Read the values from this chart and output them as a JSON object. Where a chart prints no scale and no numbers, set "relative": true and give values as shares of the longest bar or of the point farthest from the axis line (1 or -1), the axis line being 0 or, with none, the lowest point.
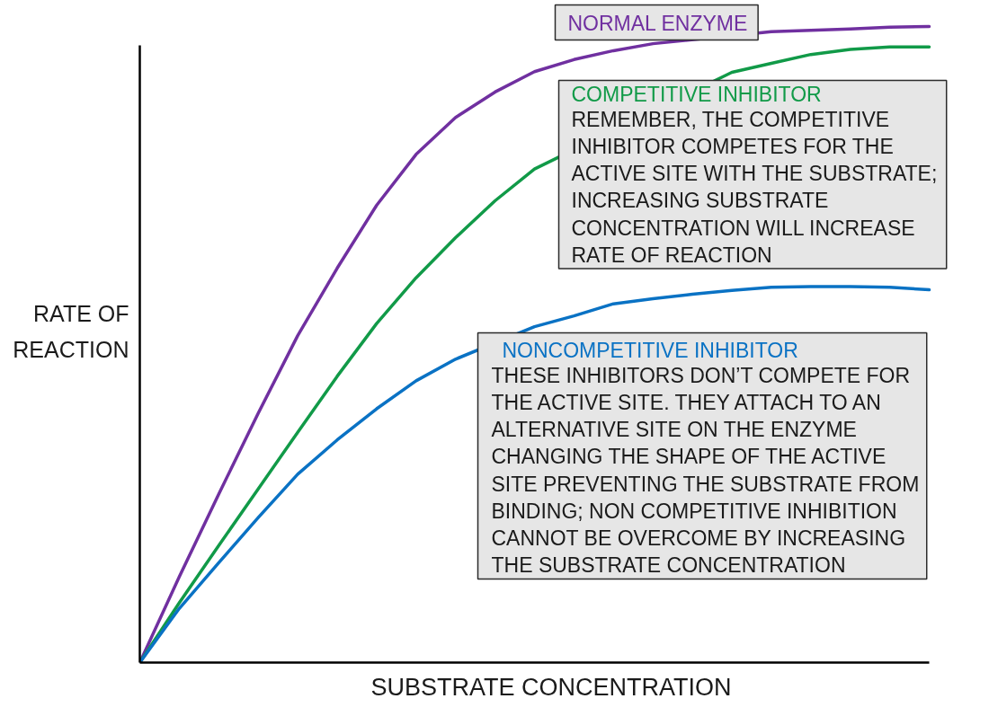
{
  "chart_data": {
    "type": "line",
    "relative": true,
    "xlabel": "SUBSTRATE CONCENTRATION",
    "ylabel": "RATE OF\nREACTION",
    "line_style": "solid",
    "categories": [
      null,
      null,
      null,
      null,
      null,
      null,
      null,
      null,
      null,
      null,
      null,
      null,
      null,
      null,
      null,
      null,
      null,
      null,
      null,
      null,
      null
    ],
    "series": [
      {
        "name": "NORMAL ENZYME",
        "color": "#7030a0",
        "values": [
          0,
          0.135,
          0.265,
          0.392,
          0.514,
          0.62,
          0.719,
          0.799,
          0.857,
          0.897,
          0.929,
          0.948,
          0.962,
          0.973,
          null,
          null,
          0.992,
          0.994,
          0.996,
          0.999,
          1.0
        ]
      },
      {
        "name": "COMPETITIVE INHIBITOR",
        "color": "#119a48",
        "values": [
          0,
          0.094,
          0.184,
          0.273,
          0.362,
          0.45,
          0.533,
          0.605,
          0.668,
          0.726,
          0.776,
          null,
          null,
          null,
          null,
          0.928,
          0.942,
          0.956,
          0.964,
          0.968,
          0.968
        ]
      },
      {
        "name": "NONCOMPETITIVE INHIBITOR",
        "color": "#0a72c4",
        "values": [
          0,
          0.085,
          0.157,
          0.228,
          0.296,
          0.35,
          0.399,
          0.443,
          0.477,
          null,
          0.528,
          0.545,
          0.564,
          0.572,
          0.579,
          0.585,
          0.59,
          0.591,
          0.591,
          0.59,
          0.586
        ]
      }
    ],
    "annotations": [
      "REMEMBER, THE COMPETITIVE\nINHIBITOR COMPETES FOR THE\nACTIVE SITE WITH THE SUBSTRATE;\nINCREASING SUBSTRATE\nCONCENTRATION WILL INCREASE\nRATE OF REACTION",
      "THESE INHIBITORS DON’T COMPETE FOR\nTHE ACTIVE SITE. THEY ATTACH TO AN\nALTERNATIVE SITE ON THE ENZYME\nCHANGING THE SHAPE OF THE ACTIVE\nSITE PREVENTING THE SUBSTRATE FROM\nBINDING; NON COMPETITIVE INHIBITION\nCANNOT BE OVERCOME BY INCREASING\nTHE SUBSTRATE CONCENTRATION"
    ]
  }
}
